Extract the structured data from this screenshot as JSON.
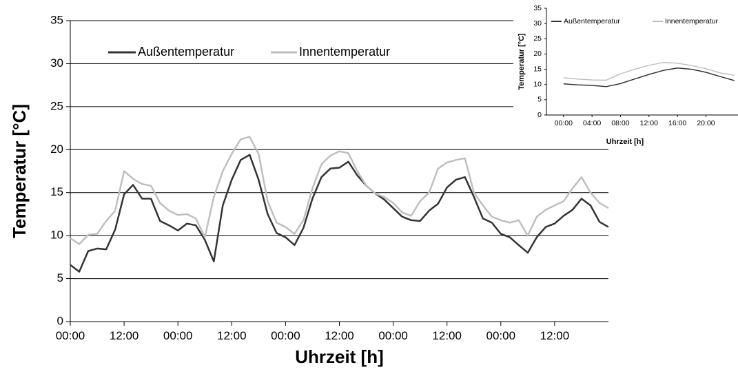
{
  "chart_data": [
    {
      "type": "line",
      "x": [
        0,
        2,
        4,
        6,
        8,
        10,
        12,
        14,
        16,
        18,
        20,
        22,
        24,
        26,
        28,
        30,
        32,
        34,
        36,
        38,
        40,
        42,
        44,
        46,
        48,
        50,
        52,
        54,
        56,
        58,
        60,
        62,
        64,
        66,
        68,
        70,
        72,
        74,
        76,
        78,
        80,
        82,
        84,
        86,
        88,
        90,
        92,
        94,
        96,
        98,
        100,
        102,
        104,
        106,
        108,
        110,
        112,
        114,
        116,
        118,
        120
      ],
      "series": [
        {
          "name": "Außentemperatur",
          "color": "#333333",
          "values": [
            6.6,
            5.8,
            8.2,
            8.5,
            8.4,
            10.7,
            14.8,
            15.9,
            14.3,
            14.3,
            11.7,
            11.2,
            10.6,
            11.4,
            11.2,
            9.5,
            7.0,
            13.5,
            16.5,
            18.8,
            19.4,
            16.5,
            12.5,
            10.3,
            9.8,
            8.9,
            10.9,
            14.3,
            16.8,
            17.8,
            17.9,
            18.6,
            17.0,
            15.8,
            14.9,
            14.2,
            13.2,
            12.2,
            11.8,
            11.7,
            12.9,
            13.7,
            15.6,
            16.5,
            16.8,
            14.5,
            12.0,
            11.5,
            10.2,
            9.8,
            8.9,
            8.0,
            9.8,
            11.0,
            11.4,
            12.3,
            13.0,
            14.3,
            13.5,
            11.6,
            11.0
          ]
        },
        {
          "name": "Innentemperatur",
          "color": "#bfbfbf",
          "values": [
            9.7,
            9.0,
            10.1,
            10.2,
            11.7,
            12.9,
            17.5,
            16.6,
            16.0,
            15.8,
            13.8,
            12.9,
            12.4,
            12.5,
            12.0,
            9.8,
            14.5,
            17.5,
            19.5,
            21.2,
            21.5,
            19.5,
            14.0,
            11.5,
            11.0,
            10.2,
            11.8,
            15.5,
            18.3,
            19.3,
            19.8,
            19.6,
            17.5,
            15.8,
            14.9,
            14.5,
            13.8,
            12.7,
            12.3,
            14.0,
            15.0,
            17.8,
            18.5,
            18.8,
            19.0,
            15.0,
            13.5,
            12.2,
            11.8,
            11.5,
            11.8,
            10.0,
            12.2,
            13.0,
            13.5,
            14.0,
            15.5,
            16.8,
            15.0,
            13.8,
            13.2
          ]
        }
      ],
      "xlim": [
        0,
        120
      ],
      "xticks": [
        {
          "value": 0,
          "label": "00:00"
        },
        {
          "value": 12,
          "label": "12:00"
        },
        {
          "value": 24,
          "label": "00:00"
        },
        {
          "value": 36,
          "label": "12:00"
        },
        {
          "value": 48,
          "label": "00:00"
        },
        {
          "value": 60,
          "label": "12:00"
        },
        {
          "value": 72,
          "label": "00:00"
        },
        {
          "value": 84,
          "label": "12:00"
        },
        {
          "value": 96,
          "label": "00:00"
        },
        {
          "value": 108,
          "label": "12:00"
        }
      ],
      "ylim": [
        0,
        35
      ],
      "yticks": [
        0,
        5,
        10,
        15,
        20,
        25,
        30,
        35
      ],
      "x_label": "Uhrzeit [h]",
      "y_label": "Temperatur [°C]",
      "grid": true
    },
    {
      "type": "line",
      "x": [
        0,
        2,
        4,
        6,
        8,
        10,
        12,
        14,
        16,
        18,
        20,
        22,
        24
      ],
      "series": [
        {
          "name": "Außentemperatur",
          "color": "#333333",
          "values": [
            10.2,
            9.9,
            9.7,
            9.3,
            10.3,
            11.8,
            13.3,
            14.6,
            15.4,
            15.0,
            14.0,
            12.6,
            11.3
          ]
        },
        {
          "name": "Innentemperatur",
          "color": "#bfbfbf",
          "values": [
            12.2,
            11.8,
            11.5,
            11.4,
            13.5,
            15.0,
            16.3,
            17.2,
            17.0,
            16.2,
            15.2,
            13.8,
            13.0
          ]
        }
      ],
      "xlim": [
        -2.4,
        24.5
      ],
      "xticks": [
        {
          "value": 0,
          "label": "00:00"
        },
        {
          "value": 4,
          "label": "04:00"
        },
        {
          "value": 8,
          "label": "08:00"
        },
        {
          "value": 12,
          "label": "12:00"
        },
        {
          "value": 16,
          "label": "16:00"
        },
        {
          "value": 20,
          "label": "20:00"
        }
      ],
      "ylim": [
        0,
        35
      ],
      "yticks": [
        0,
        5,
        10,
        15,
        20,
        25,
        30,
        35
      ],
      "x_label": "Uhrzeit [h]",
      "y_label": "Temperatur [°C]",
      "grid": false
    }
  ]
}
